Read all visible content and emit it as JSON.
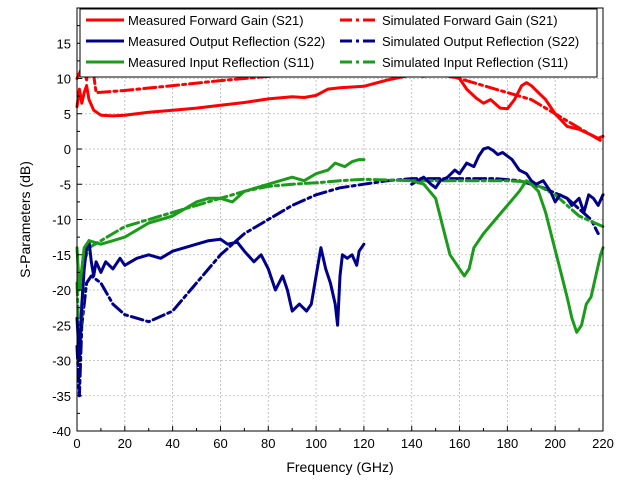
{
  "chart_data": {
    "type": "line",
    "title": "",
    "xlabel": "Frequency (GHz)",
    "ylabel": "S-Parameters (dB)",
    "xlim": [
      0,
      220
    ],
    "ylim": [
      -40,
      20
    ],
    "x_ticks": [
      0,
      20,
      40,
      60,
      80,
      100,
      120,
      140,
      160,
      180,
      200,
      220
    ],
    "y_ticks": [
      -40,
      -35,
      -30,
      -25,
      -20,
      -15,
      -10,
      -5,
      0,
      5,
      10,
      15
    ],
    "grid": true,
    "legend_placement": "top",
    "series": [
      {
        "name": "Measured Forward Gain (S21)",
        "color": "#ff0000",
        "dash": "solid",
        "points": [
          [
            0,
            6
          ],
          [
            1,
            8.5
          ],
          [
            2,
            6.5
          ],
          [
            3,
            8
          ],
          [
            4,
            9
          ],
          [
            5,
            7
          ],
          [
            7,
            5.5
          ],
          [
            10,
            4.8
          ],
          [
            15,
            4.7
          ],
          [
            20,
            4.8
          ],
          [
            30,
            5.2
          ],
          [
            40,
            5.5
          ],
          [
            50,
            5.8
          ],
          [
            60,
            6.2
          ],
          [
            70,
            6.6
          ],
          [
            80,
            7.1
          ],
          [
            90,
            7.4
          ],
          [
            95,
            7.3
          ],
          [
            100,
            7.6
          ],
          [
            105,
            8.5
          ],
          [
            110,
            8.7
          ],
          [
            120,
            8.9
          ],
          [
            130,
            9.8
          ],
          [
            140,
            10.5
          ],
          [
            145,
            10.3
          ],
          [
            150,
            10.8
          ],
          [
            155,
            10.5
          ],
          [
            160,
            10
          ],
          [
            163,
            8.5
          ],
          [
            167,
            7.2
          ],
          [
            170,
            6.5
          ],
          [
            173,
            7
          ],
          [
            177,
            5.8
          ],
          [
            180,
            5.7
          ],
          [
            183,
            7
          ],
          [
            186,
            9
          ],
          [
            188,
            9.4
          ],
          [
            190,
            9
          ],
          [
            193,
            8
          ],
          [
            196,
            7
          ],
          [
            200,
            5
          ],
          [
            205,
            3.2
          ],
          [
            210,
            2.8
          ],
          [
            215,
            2
          ],
          [
            218,
            1.5
          ],
          [
            220,
            1.8
          ]
        ]
      },
      {
        "name": "Simulated Forward Gain (S21)",
        "color": "#ff0000",
        "dash": "dashdot",
        "points": [
          [
            0,
            10
          ],
          [
            2,
            11.5
          ],
          [
            3,
            11
          ],
          [
            4,
            9.8
          ],
          [
            5,
            11.8
          ],
          [
            7,
            10.5
          ],
          [
            8,
            8
          ],
          [
            20,
            8.3
          ],
          [
            40,
            9
          ],
          [
            60,
            9.7
          ],
          [
            80,
            10.3
          ],
          [
            100,
            10.8
          ],
          [
            120,
            11.2
          ],
          [
            140,
            11
          ],
          [
            150,
            10.7
          ],
          [
            160,
            10
          ],
          [
            170,
            9
          ],
          [
            180,
            8
          ],
          [
            190,
            7
          ],
          [
            200,
            5
          ],
          [
            210,
            3
          ],
          [
            220,
            1
          ]
        ]
      },
      {
        "name": "Measured Output Reflection (S22)",
        "color": "#00008b",
        "dash": "solid",
        "points": [
          [
            0,
            -24
          ],
          [
            1,
            -30
          ],
          [
            2,
            -22
          ],
          [
            3,
            -17
          ],
          [
            4,
            -14
          ],
          [
            5,
            -13
          ],
          [
            6,
            -16
          ],
          [
            7,
            -18
          ],
          [
            8,
            -16
          ],
          [
            10,
            -17.5
          ],
          [
            12,
            -16
          ],
          [
            15,
            -17
          ],
          [
            18,
            -15.5
          ],
          [
            20,
            -16.5
          ],
          [
            25,
            -15.5
          ],
          [
            30,
            -15
          ],
          [
            35,
            -15.5
          ],
          [
            40,
            -14.5
          ],
          [
            45,
            -14
          ],
          [
            50,
            -13.5
          ],
          [
            55,
            -13
          ],
          [
            60,
            -12.8
          ],
          [
            63,
            -13.5
          ],
          [
            67,
            -13.2
          ],
          [
            70,
            -14.5
          ],
          [
            74,
            -16
          ],
          [
            77,
            -15
          ],
          [
            80,
            -17
          ],
          [
            83,
            -20
          ],
          [
            86,
            -18
          ],
          [
            88,
            -20
          ],
          [
            90,
            -23
          ],
          [
            93,
            -22
          ],
          [
            96,
            -23
          ],
          [
            98,
            -22
          ],
          [
            100,
            -18
          ],
          [
            102,
            -14
          ],
          [
            104,
            -17
          ],
          [
            106,
            -19
          ],
          [
            108,
            -22
          ],
          [
            109,
            -25
          ],
          [
            110,
            -18
          ],
          [
            111,
            -15
          ],
          [
            113,
            -15.5
          ],
          [
            115,
            -15
          ],
          [
            117,
            -16.5
          ],
          [
            118,
            -14.5
          ],
          [
            120,
            -13.5
          ]
        ]
      },
      {
        "name": "Simulated Output Reflection (S22)",
        "color": "#00008b",
        "dash": "dashdot",
        "points": [
          [
            0,
            -28
          ],
          [
            1,
            -35
          ],
          [
            2,
            -25
          ],
          [
            4,
            -19
          ],
          [
            6,
            -18
          ],
          [
            10,
            -19
          ],
          [
            15,
            -22
          ],
          [
            20,
            -23.5
          ],
          [
            30,
            -24.5
          ],
          [
            40,
            -23
          ],
          [
            50,
            -19
          ],
          [
            60,
            -15
          ],
          [
            70,
            -12
          ],
          [
            80,
            -10
          ],
          [
            90,
            -8
          ],
          [
            100,
            -6.5
          ],
          [
            110,
            -5.5
          ],
          [
            120,
            -5
          ],
          [
            130,
            -4.5
          ],
          [
            140,
            -4.2
          ],
          [
            160,
            -4.2
          ],
          [
            175,
            -4.2
          ],
          [
            185,
            -4.5
          ],
          [
            195,
            -5.5
          ],
          [
            205,
            -7
          ],
          [
            215,
            -10
          ],
          [
            218,
            -12
          ]
        ]
      },
      {
        "name": "Measured Input Reflection (S11)",
        "color": "#1a9c1a",
        "dash": "solid",
        "points": [
          [
            0,
            -14
          ],
          [
            1,
            -20
          ],
          [
            2,
            -17
          ],
          [
            3,
            -14
          ],
          [
            5,
            -13
          ],
          [
            10,
            -13.5
          ],
          [
            15,
            -13
          ],
          [
            20,
            -12.5
          ],
          [
            25,
            -11.5
          ],
          [
            30,
            -10.5
          ],
          [
            35,
            -10
          ],
          [
            40,
            -9.5
          ],
          [
            45,
            -8.5
          ],
          [
            50,
            -7.5
          ],
          [
            55,
            -7
          ],
          [
            60,
            -7
          ],
          [
            65,
            -7.5
          ],
          [
            70,
            -6
          ],
          [
            75,
            -5.5
          ],
          [
            80,
            -5
          ],
          [
            85,
            -4.5
          ],
          [
            90,
            -4
          ],
          [
            95,
            -4.5
          ],
          [
            100,
            -3.5
          ],
          [
            105,
            -3
          ],
          [
            108,
            -2
          ],
          [
            112,
            -2.5
          ],
          [
            115,
            -1.8
          ],
          [
            118,
            -1.5
          ],
          [
            120,
            -1.5
          ]
        ]
      },
      {
        "name": "Simulated Input Reflection (S11)",
        "color": "#1a9c1a",
        "dash": "dashdot",
        "points": [
          [
            0,
            -19
          ],
          [
            1,
            -28
          ],
          [
            2,
            -24
          ],
          [
            3,
            -16
          ],
          [
            4,
            -15
          ],
          [
            5,
            -14
          ],
          [
            10,
            -13
          ],
          [
            20,
            -11
          ],
          [
            30,
            -10
          ],
          [
            40,
            -9
          ],
          [
            50,
            -8
          ],
          [
            60,
            -7
          ],
          [
            70,
            -6
          ],
          [
            80,
            -5.3
          ],
          [
            90,
            -5
          ],
          [
            100,
            -4.8
          ],
          [
            110,
            -4.5
          ],
          [
            120,
            -4.3
          ],
          [
            130,
            -4.4
          ],
          [
            140,
            -4.5
          ],
          [
            160,
            -4.5
          ],
          [
            180,
            -4.5
          ],
          [
            190,
            -4.7
          ],
          [
            200,
            -6.5
          ],
          [
            210,
            -9.5
          ],
          [
            220,
            -11
          ]
        ]
      },
      {
        "name": "Measured Output Reflection (S22)",
        "color": "#00008b",
        "dash": "solid",
        "continuation_of_legend": true,
        "points": [
          [
            140,
            -5
          ],
          [
            145,
            -4
          ],
          [
            148,
            -5
          ],
          [
            150,
            -5.5
          ],
          [
            152,
            -4.5
          ],
          [
            155,
            -4
          ],
          [
            158,
            -3
          ],
          [
            160,
            -3.5
          ],
          [
            163,
            -2
          ],
          [
            166,
            -2.5
          ],
          [
            168,
            -1
          ],
          [
            170,
            0
          ],
          [
            172,
            0.2
          ],
          [
            174,
            -0.2
          ],
          [
            176,
            -0.8
          ],
          [
            178,
            -0.5
          ],
          [
            180,
            -1
          ],
          [
            182,
            -1.5
          ],
          [
            185,
            -3
          ],
          [
            188,
            -3.5
          ],
          [
            190,
            -4.5
          ],
          [
            192,
            -5
          ],
          [
            195,
            -4.5
          ],
          [
            198,
            -6
          ],
          [
            200,
            -7.5
          ],
          [
            202,
            -6.5
          ],
          [
            205,
            -7
          ],
          [
            207,
            -8
          ],
          [
            210,
            -7
          ],
          [
            212,
            -9
          ],
          [
            214,
            -6.5
          ],
          [
            216,
            -7
          ],
          [
            218,
            -8
          ],
          [
            220,
            -6.5
          ]
        ]
      },
      {
        "name": "Measured Input Reflection (S11)",
        "color": "#1a9c1a",
        "dash": "solid",
        "continuation_of_legend": true,
        "points": [
          [
            140,
            -4.5
          ],
          [
            145,
            -5
          ],
          [
            150,
            -7
          ],
          [
            153,
            -11
          ],
          [
            156,
            -15
          ],
          [
            158,
            -16
          ],
          [
            160,
            -17
          ],
          [
            162,
            -18
          ],
          [
            164,
            -17
          ],
          [
            166,
            -14
          ],
          [
            170,
            -12
          ],
          [
            175,
            -10
          ],
          [
            180,
            -8
          ],
          [
            185,
            -6
          ],
          [
            188,
            -4.5
          ],
          [
            190,
            -5
          ],
          [
            193,
            -6
          ],
          [
            196,
            -9
          ],
          [
            199,
            -13
          ],
          [
            202,
            -17
          ],
          [
            205,
            -21
          ],
          [
            207,
            -24
          ],
          [
            209,
            -26
          ],
          [
            211,
            -25
          ],
          [
            213,
            -22
          ],
          [
            215,
            -21
          ],
          [
            217,
            -18
          ],
          [
            219,
            -15
          ],
          [
            220,
            -14
          ]
        ]
      }
    ]
  }
}
